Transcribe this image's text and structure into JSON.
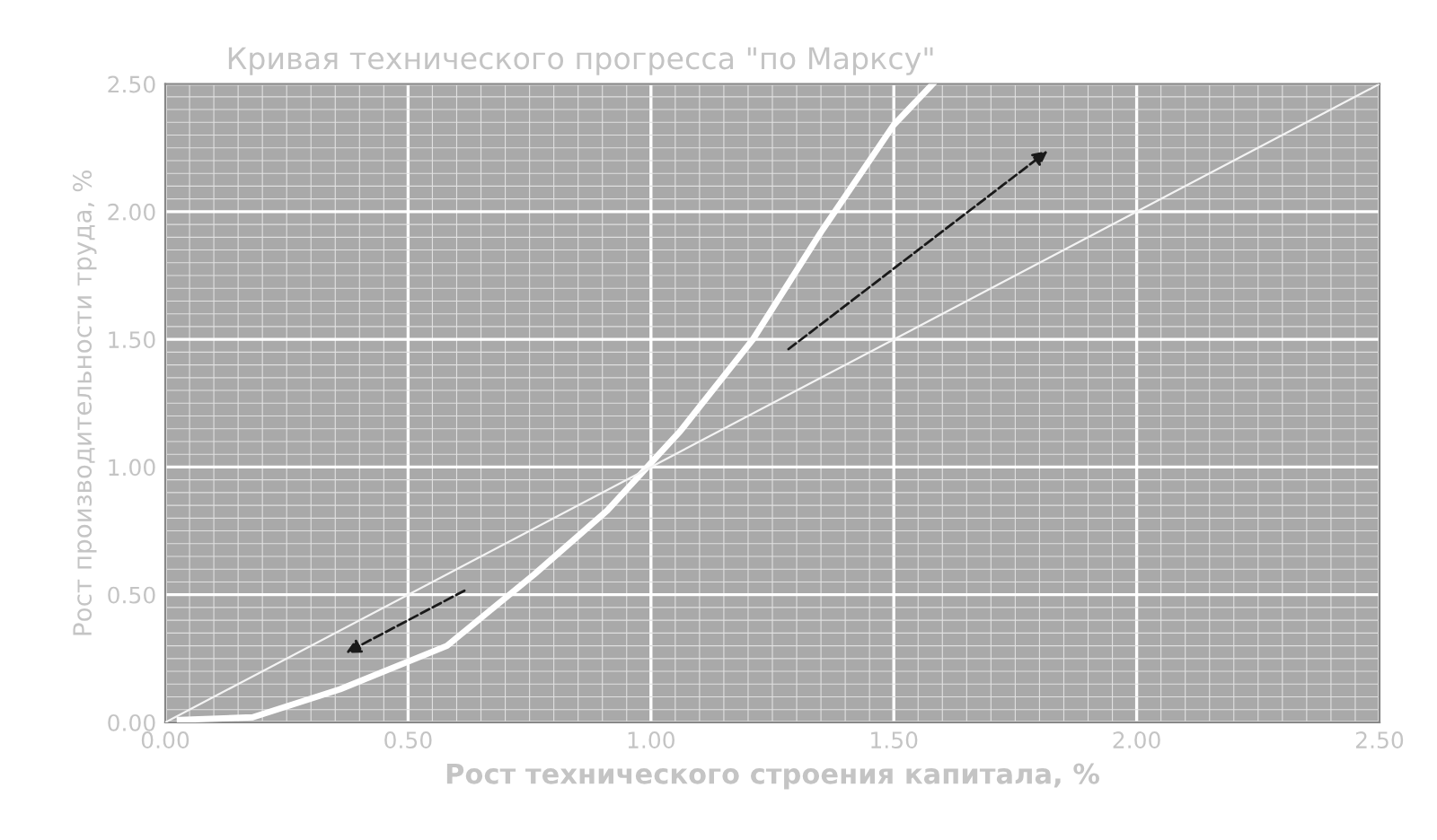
{
  "chart_data": {
    "type": "line",
    "title": "Кривая технического прогресса \"по Марксу\"",
    "xlabel": "Рост технического строения капитала, %",
    "ylabel": "Рост производительности труда, %",
    "xlim": [
      0,
      2.5
    ],
    "ylim": [
      0,
      2.5
    ],
    "xticks": [
      {
        "value": 0,
        "label": "0.00"
      },
      {
        "value": 0.5,
        "label": "0.50"
      },
      {
        "value": 1,
        "label": "1.00"
      },
      {
        "value": 1.5,
        "label": "1.50"
      },
      {
        "value": 2,
        "label": "2.00"
      },
      {
        "value": 2.5,
        "label": "2.50"
      }
    ],
    "yticks": [
      {
        "value": 0,
        "label": "0.00"
      },
      {
        "value": 0.5,
        "label": "0.50"
      },
      {
        "value": 1,
        "label": "1.00"
      },
      {
        "value": 1.5,
        "label": "1.50"
      },
      {
        "value": 2,
        "label": "2.00"
      },
      {
        "value": 2.5,
        "label": "2.50"
      }
    ],
    "grid": true,
    "marker": "none",
    "line_style": "solid",
    "series": [
      {
        "color": "#ffffff",
        "x": [
          0.03,
          0.18,
          0.36,
          0.58,
          0.76,
          0.91,
          1.06,
          1.21,
          1.35,
          1.5,
          1.58
        ],
        "values": [
          0.01,
          0.02,
          0.13,
          0.3,
          0.58,
          0.83,
          1.14,
          1.5,
          1.92,
          2.34,
          2.5
        ]
      },
      {
        "color": "#f4f4f4",
        "x": [
          0,
          2.5
        ],
        "values": [
          0,
          2.5
        ]
      }
    ]
  }
}
